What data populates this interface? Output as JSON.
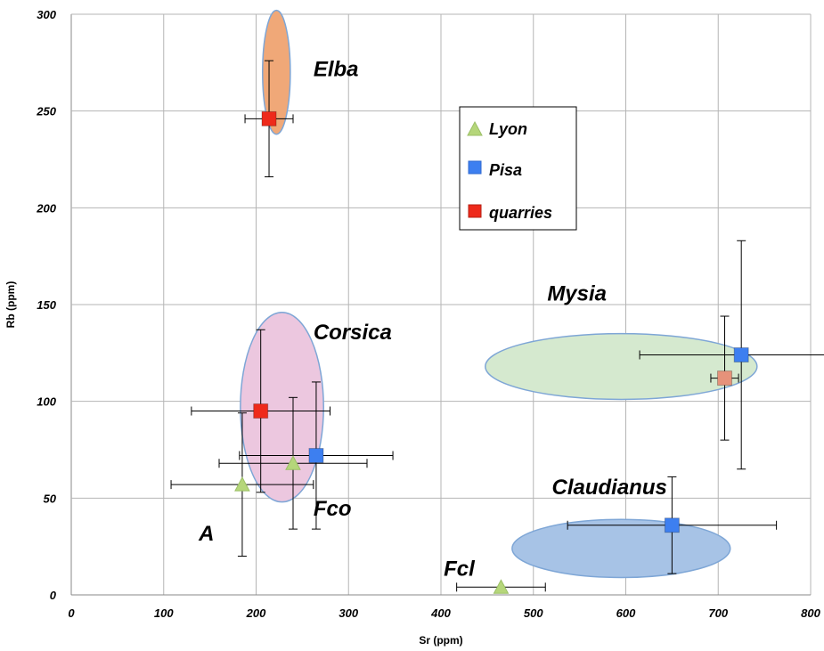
{
  "chart_data": {
    "type": "scatter",
    "xlabel": "Sr (ppm)",
    "ylabel": "Rb (ppm)",
    "xlim": [
      0,
      800
    ],
    "ylim": [
      0,
      300
    ],
    "x_ticks": [
      "0",
      "100",
      "200",
      "300",
      "400",
      "500",
      "600",
      "700",
      "800"
    ],
    "y_ticks": [
      "0",
      "50",
      "100",
      "150",
      "200",
      "250",
      "300"
    ],
    "grid": true,
    "legend_position": "top-center",
    "series": [
      {
        "name": "Lyon",
        "marker": "triangle",
        "color": "#b5d67a",
        "points": [
          {
            "x": 185,
            "y": 57,
            "xerr": 77,
            "yerr": 37
          },
          {
            "x": 240,
            "y": 68,
            "xerr": 80,
            "yerr": 34
          },
          {
            "x": 465,
            "y": 4,
            "xerr": 48,
            "yerr": 0
          }
        ]
      },
      {
        "name": "Pisa",
        "marker": "square",
        "color": "#3d7ff0",
        "points": [
          {
            "x": 265,
            "y": 72,
            "xerr": 83,
            "yerr": 38
          },
          {
            "x": 650,
            "y": 36,
            "xerr": 113,
            "yerr": 25
          },
          {
            "x": 725,
            "y": 124,
            "xerr": 110,
            "yerr": 59
          }
        ]
      },
      {
        "name": "quarries",
        "marker": "square",
        "color": "#ee2a1b",
        "points": [
          {
            "x": 214,
            "y": 246,
            "xerr": 26,
            "yerr": 30
          },
          {
            "x": 205,
            "y": 95,
            "xerr": 75,
            "yerr": 42
          }
        ]
      },
      {
        "name": "",
        "marker": "square",
        "color": "#e6927a",
        "points": [
          {
            "x": 707,
            "y": 112,
            "xerr": 15,
            "yerr": 32
          }
        ]
      }
    ],
    "regions": [
      {
        "label": "Elba",
        "cx": 222,
        "cy": 270,
        "rx": 15,
        "ry": 32,
        "fill": "#f0a878",
        "stroke": "#7ea6d6"
      },
      {
        "label": "Corsica",
        "cx": 228,
        "cy": 97,
        "rx": 45,
        "ry": 49,
        "fill": "#ecc7df",
        "stroke": "#7ea6d6"
      },
      {
        "label": "Mysia",
        "cx": 595,
        "cy": 118,
        "rx": 147,
        "ry": 17,
        "fill": "#d5e9cf",
        "stroke": "#7ea6d6"
      },
      {
        "label": "Claudianus",
        "cx": 595,
        "cy": 24,
        "rx": 118,
        "ry": 15,
        "fill": "#a7c3e6",
        "stroke": "#7ea6d6"
      }
    ],
    "annotations": [
      {
        "text": "Elba",
        "x": 262,
        "y": 268
      },
      {
        "text": "Corsica",
        "x": 262,
        "y": 132
      },
      {
        "text": "Mysia",
        "x": 515,
        "y": 152
      },
      {
        "text": "Claudianus",
        "x": 520,
        "y": 52
      },
      {
        "text": "Fco",
        "x": 262,
        "y": 41
      },
      {
        "text": "A",
        "x": 138,
        "y": 28
      },
      {
        "text": "Fcl",
        "x": 403,
        "y": 10
      }
    ]
  }
}
